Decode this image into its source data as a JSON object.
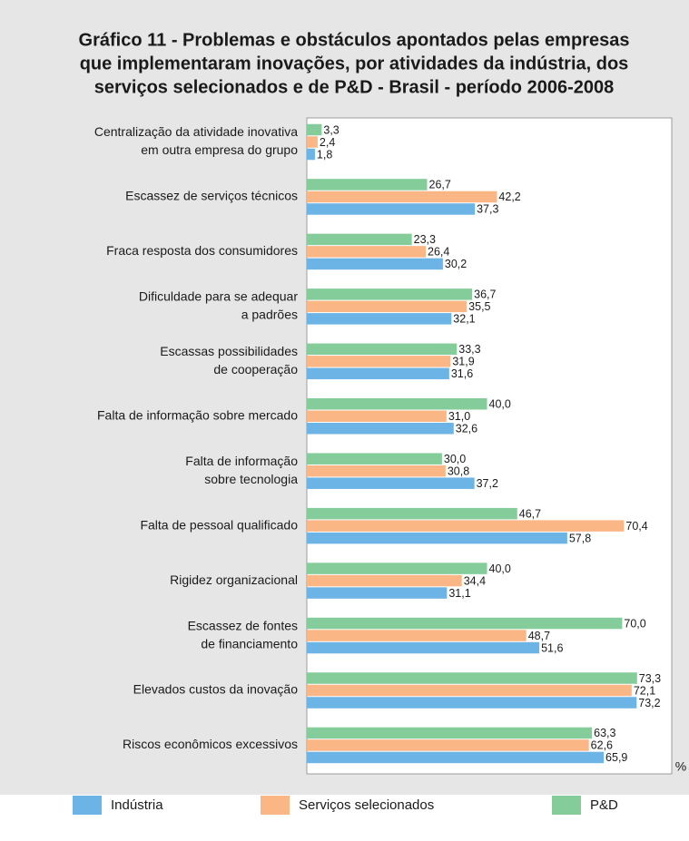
{
  "chart_data": {
    "type": "bar",
    "orientation": "horizontal",
    "title": [
      "Gráfico 11 - Problemas e obstáculos apontados pelas empresas",
      "que implementaram inovações, por atividades da indústria, dos",
      "serviços selecionados e de P&D - Brasil - período 2006-2008"
    ],
    "categories": [
      [
        "Centralização da atividade inovativa",
        "em outra empresa do grupo"
      ],
      [
        "Escassez de serviços técnicos"
      ],
      [
        "Fraca resposta dos consumidores"
      ],
      [
        "Dificuldade para se adequar",
        "a padrões"
      ],
      [
        "Escassas possibilidades",
        "de cooperação"
      ],
      [
        "Falta de informação sobre mercado"
      ],
      [
        "Falta de informação",
        "sobre tecnologia"
      ],
      [
        "Falta de pessoal qualificado"
      ],
      [
        "Rigidez organizacional"
      ],
      [
        "Escassez de fontes",
        "de financiamento"
      ],
      [
        "Elevados custos da inovação"
      ],
      [
        "Riscos econômicos excessivos"
      ]
    ],
    "series": [
      {
        "name": "Indústria",
        "color": "#6cb4e6",
        "values": [
          1.8,
          37.3,
          30.2,
          32.1,
          31.6,
          32.6,
          37.2,
          57.8,
          31.1,
          51.6,
          73.2,
          65.9
        ],
        "value_labels": [
          "1,8",
          "37,3",
          "30,2",
          "32,1",
          "31,6",
          "32,6",
          "37,2",
          "57,8",
          "31,1",
          "51,6",
          "73,2",
          "65,9"
        ]
      },
      {
        "name": "Serviços selecionados",
        "color": "#fbb685",
        "values": [
          2.4,
          42.2,
          26.4,
          35.5,
          31.9,
          31.0,
          30.8,
          70.4,
          34.4,
          48.7,
          72.1,
          62.6
        ],
        "value_labels": [
          "2,4",
          "42,2",
          "26,4",
          "35,5",
          "31,9",
          "31,0",
          "30,8",
          "70,4",
          "34,4",
          "48,7",
          "72,1",
          "62,6"
        ]
      },
      {
        "name": "P&D",
        "color": "#84cc99",
        "values": [
          3.3,
          26.7,
          23.3,
          36.7,
          33.3,
          40.0,
          30.0,
          46.7,
          40.0,
          70.0,
          73.3,
          63.3
        ],
        "value_labels": [
          "3,3",
          "26,7",
          "23,3",
          "36,7",
          "33,3",
          "40,0",
          "30,0",
          "46,7",
          "40,0",
          "70,0",
          "73,3",
          "63,3"
        ]
      }
    ],
    "xlim": [
      0,
      81
    ],
    "unit_label": "%"
  }
}
